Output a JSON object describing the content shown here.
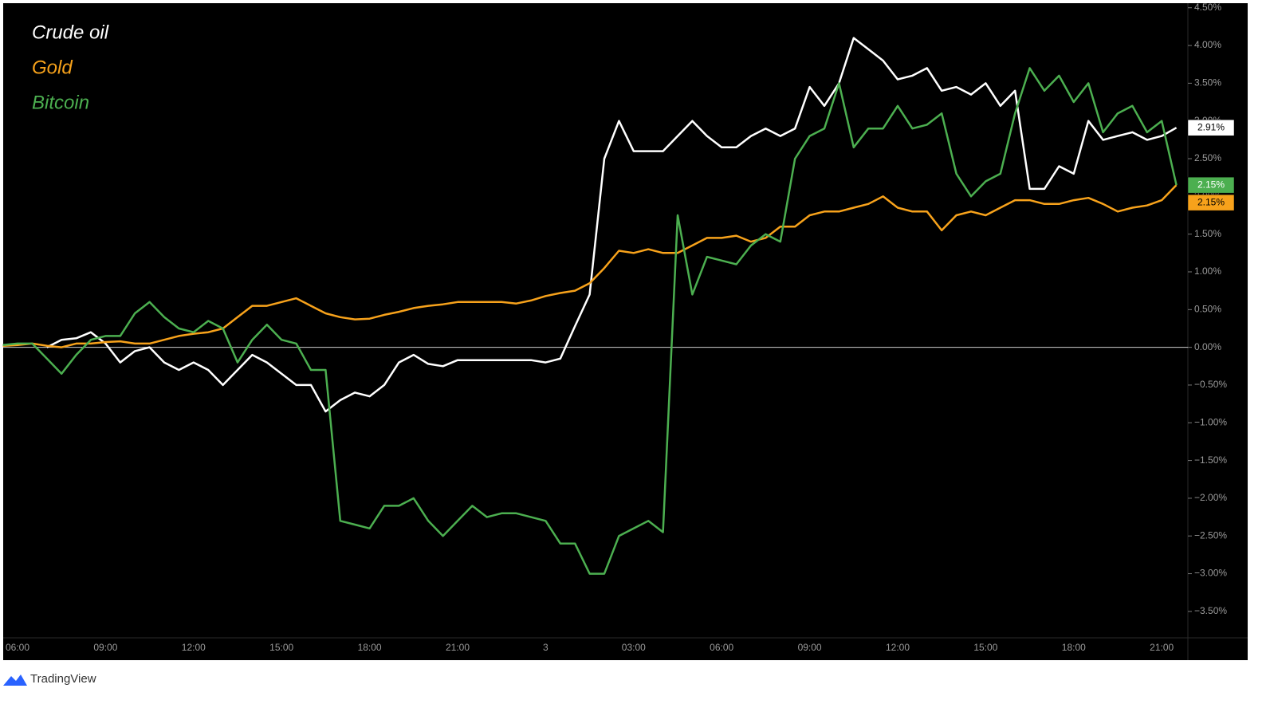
{
  "chart_data": {
    "type": "line",
    "categories": [
      null,
      "06:00",
      null,
      null,
      null,
      null,
      null,
      "09:00",
      null,
      null,
      null,
      null,
      null,
      "12:00",
      null,
      null,
      null,
      null,
      null,
      "15:00",
      null,
      null,
      null,
      null,
      null,
      "18:00",
      null,
      null,
      null,
      null,
      null,
      "21:00",
      null,
      null,
      null,
      null,
      null,
      "3",
      null,
      null,
      null,
      null,
      null,
      "03:00",
      null,
      null,
      null,
      null,
      null,
      "06:00",
      null,
      null,
      null,
      null,
      null,
      "09:00",
      null,
      null,
      null,
      null,
      null,
      "12:00",
      null,
      null,
      null,
      null,
      null,
      "15:00",
      null,
      null,
      null,
      null,
      null,
      "18:00",
      null,
      null,
      null,
      null,
      null,
      "21:00",
      null
    ],
    "series": [
      {
        "name": "Crude oil",
        "color": "#ffffff",
        "last_label": "2.91%",
        "values": [
          null,
          null,
          null,
          0.0,
          0.1,
          0.12,
          0.2,
          0.05,
          -0.2,
          -0.05,
          0.0,
          -0.2,
          -0.3,
          -0.2,
          -0.3,
          -0.5,
          -0.3,
          -0.1,
          -0.2,
          -0.35,
          -0.5,
          -0.5,
          -0.85,
          -0.7,
          -0.6,
          -0.65,
          -0.5,
          -0.2,
          -0.1,
          -0.22,
          -0.25,
          -0.17,
          -0.17,
          -0.17,
          -0.17,
          -0.17,
          -0.17,
          -0.2,
          -0.15,
          0.28,
          0.7,
          2.5,
          3.0,
          2.6,
          2.6,
          2.6,
          2.8,
          3.0,
          2.8,
          2.65,
          2.65,
          2.8,
          2.9,
          2.8,
          2.9,
          3.45,
          3.2,
          3.5,
          4.1,
          3.95,
          3.8,
          3.55,
          3.6,
          3.7,
          3.4,
          3.45,
          3.35,
          3.5,
          3.2,
          3.4,
          2.1,
          2.1,
          2.4,
          2.3,
          3.0,
          2.75,
          2.8,
          2.85,
          2.75,
          2.8,
          2.91
        ]
      },
      {
        "name": "Gold",
        "color": "#f7a21b",
        "last_label": "2.15%",
        "values": [
          0.02,
          0.03,
          0.05,
          0.02,
          0.0,
          0.05,
          0.05,
          0.07,
          0.08,
          0.05,
          0.05,
          0.1,
          0.15,
          0.18,
          0.2,
          0.25,
          0.4,
          0.55,
          0.55,
          0.6,
          0.65,
          0.55,
          0.45,
          0.4,
          0.37,
          0.38,
          0.43,
          0.47,
          0.52,
          0.55,
          0.57,
          0.6,
          0.6,
          0.6,
          0.6,
          0.58,
          0.62,
          0.68,
          0.72,
          0.75,
          0.85,
          1.05,
          1.28,
          1.25,
          1.3,
          1.25,
          1.25,
          1.35,
          1.45,
          1.45,
          1.48,
          1.4,
          1.45,
          1.6,
          1.6,
          1.75,
          1.8,
          1.8,
          1.85,
          1.9,
          2.0,
          1.85,
          1.8,
          1.8,
          1.55,
          1.75,
          1.8,
          1.75,
          1.85,
          1.95,
          1.95,
          1.9,
          1.9,
          1.95,
          1.98,
          1.9,
          1.8,
          1.85,
          1.88,
          1.95,
          2.15
        ]
      },
      {
        "name": "Bitcoin",
        "color": "#4caf50",
        "last_label": "2.15%",
        "values": [
          0.03,
          0.05,
          0.05,
          -0.15,
          -0.35,
          -0.1,
          0.1,
          0.15,
          0.15,
          0.45,
          0.6,
          0.4,
          0.25,
          0.2,
          0.35,
          0.25,
          -0.2,
          0.1,
          0.3,
          0.1,
          0.05,
          -0.3,
          -0.3,
          -2.3,
          -2.35,
          -2.4,
          -2.1,
          -2.1,
          -2.0,
          -2.3,
          -2.5,
          -2.3,
          -2.1,
          -2.25,
          -2.2,
          -2.2,
          -2.25,
          -2.3,
          -2.6,
          -2.6,
          -3.0,
          -3.0,
          -2.5,
          -2.4,
          -2.3,
          -2.45,
          1.75,
          0.7,
          1.2,
          1.15,
          1.1,
          1.35,
          1.5,
          1.4,
          2.5,
          2.8,
          2.9,
          3.5,
          2.65,
          2.9,
          2.9,
          3.2,
          2.9,
          2.95,
          3.1,
          2.3,
          2.0,
          2.2,
          2.3,
          3.1,
          3.7,
          3.4,
          3.6,
          3.25,
          3.5,
          2.85,
          3.1,
          3.2,
          2.85,
          3.0,
          2.15
        ]
      }
    ],
    "ylim": [
      -3.85,
      4.55
    ],
    "yticks": [
      {
        "value": 4.5,
        "label": "4.50%"
      },
      {
        "value": 4.0,
        "label": "4.00%"
      },
      {
        "value": 3.5,
        "label": "3.50%"
      },
      {
        "value": 3.0,
        "label": "3.00%"
      },
      {
        "value": 2.5,
        "label": "2.50%"
      },
      {
        "value": 2.0,
        "label": "2.00%"
      },
      {
        "value": 1.5,
        "label": "1.50%"
      },
      {
        "value": 1.0,
        "label": "1.00%"
      },
      {
        "value": 0.5,
        "label": "0.50%"
      },
      {
        "value": 0,
        "label": "0.00%"
      },
      {
        "value": -0.5,
        "label": "−0.50%"
      },
      {
        "value": -1.0,
        "label": "−1.00%"
      },
      {
        "value": -1.5,
        "label": "−1.50%"
      },
      {
        "value": -2.0,
        "label": "−2.00%"
      },
      {
        "value": -2.5,
        "label": "−2.50%"
      },
      {
        "value": -3.0,
        "label": "−3.00%"
      },
      {
        "value": -3.5,
        "label": "−3.50%"
      }
    ],
    "grid": false,
    "zero_line": true
  },
  "footer": {
    "brand": "TradingView"
  }
}
